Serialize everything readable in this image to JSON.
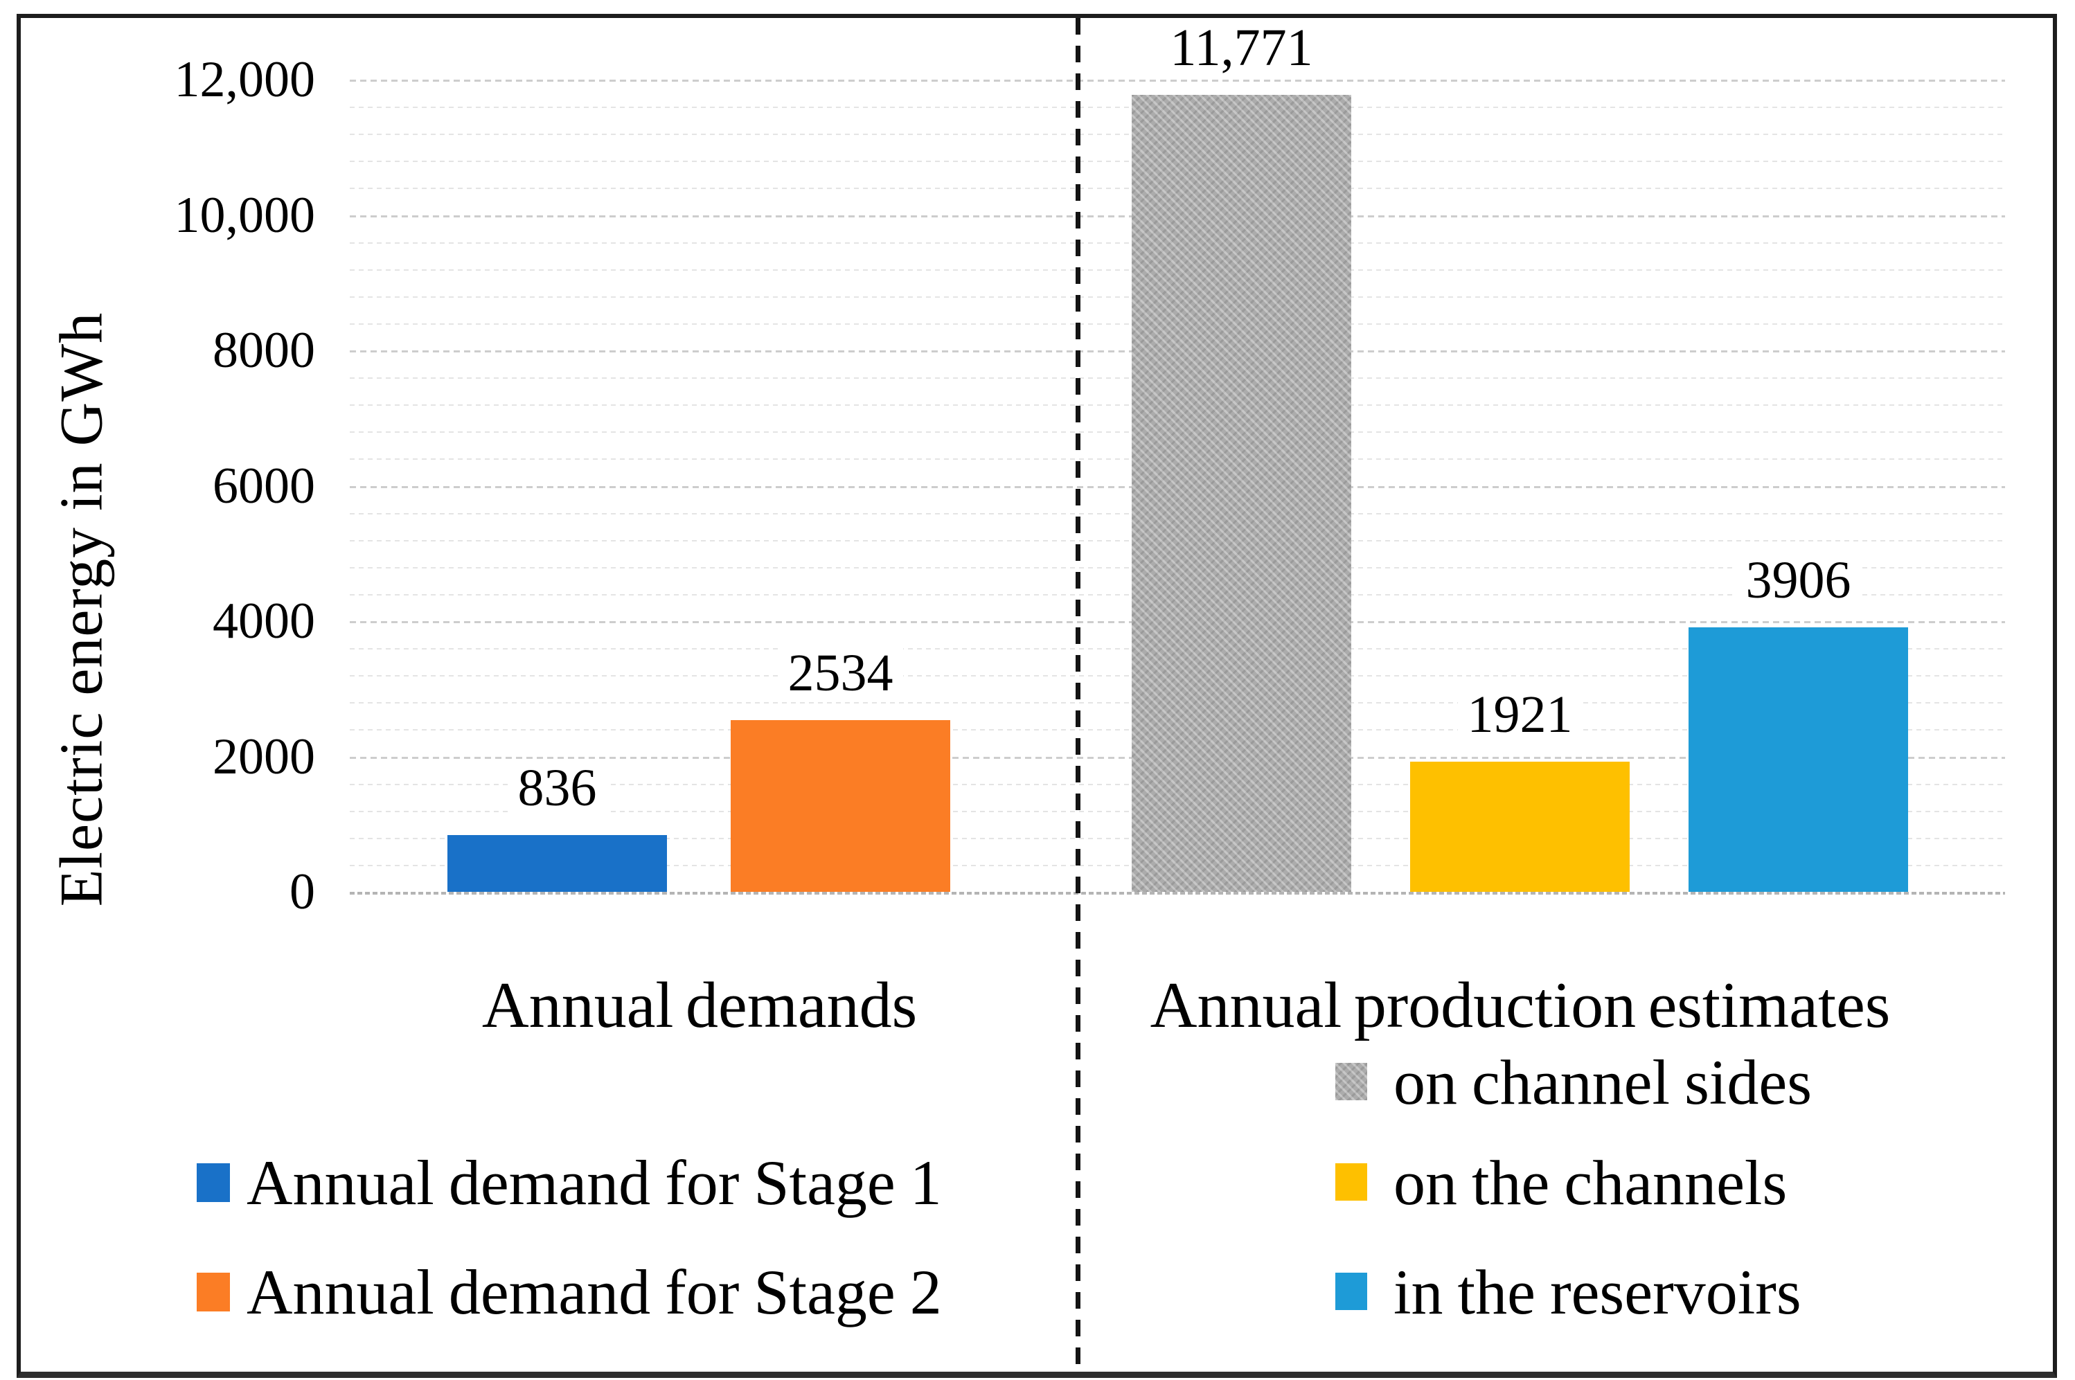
{
  "y_axis": {
    "title": "Electric energy in GWh",
    "ticks": [
      {
        "label": "0",
        "value": 0
      },
      {
        "label": "2000",
        "value": 2000
      },
      {
        "label": "4000",
        "value": 4000
      },
      {
        "label": "6000",
        "value": 6000
      },
      {
        "label": "8000",
        "value": 8000
      },
      {
        "label": "10,000",
        "value": 10000
      },
      {
        "label": "12,000",
        "value": 12000
      }
    ]
  },
  "chart_data": {
    "type": "bar",
    "title": "",
    "xlabel": "",
    "ylabel": "Electric energy in GWh",
    "ylim": [
      0,
      12000
    ],
    "y_major_unit": 2000,
    "y_minor_unit": 400,
    "grid": true,
    "legend_position": "bottom",
    "categories": [
      "Annual demands",
      "Annual production estimates"
    ],
    "bars": [
      {
        "category": "Annual demands",
        "series": "Annual demand for Stage 1",
        "value": 836,
        "label": "836",
        "color": "#1971C8",
        "patterned": false
      },
      {
        "category": "Annual demands",
        "series": "Annual demand for Stage 2",
        "value": 2534,
        "label": "2534",
        "color": "#FB7D25",
        "patterned": false
      },
      {
        "category": "Annual production estimates",
        "series": "on channel sides",
        "value": 11771,
        "label": "11,771",
        "color": "#ACACAC",
        "patterned": true
      },
      {
        "category": "Annual production estimates",
        "series": "on the channels",
        "value": 1921,
        "label": "1921",
        "color": "#FEC000",
        "patterned": false
      },
      {
        "category": "Annual production estimates",
        "series": "in the reservoirs",
        "value": 3906,
        "label": "3906",
        "color": "#1E9BD7",
        "patterned": false
      }
    ]
  },
  "legend_left": {
    "items": [
      {
        "label": "Annual demand for Stage 1",
        "color": "#1971C8",
        "patterned": false
      },
      {
        "label": "Annual demand for Stage 2",
        "color": "#FB7D25",
        "patterned": false
      }
    ]
  },
  "legend_right": {
    "items": [
      {
        "label": "on channel sides",
        "color": "#ACACAC",
        "patterned": true
      },
      {
        "label": "on the channels",
        "color": "#FEC000",
        "patterned": false
      },
      {
        "label": "in the reservoirs",
        "color": "#1E9BD7",
        "patterned": false
      }
    ]
  }
}
